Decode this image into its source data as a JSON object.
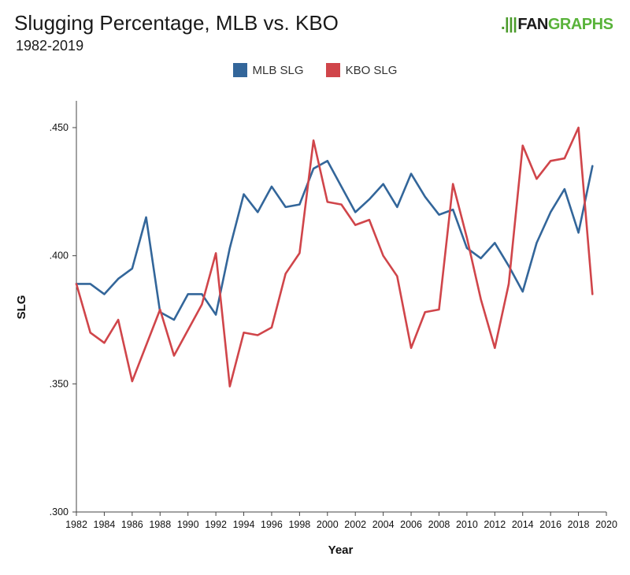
{
  "header": {
    "title": "Slugging Percentage, MLB vs. KBO",
    "subtitle": "1982-2019",
    "logo_mark": ".|||",
    "logo_fan": "FAN",
    "logo_graphs": "GRAPHS"
  },
  "colors": {
    "mlb": "#33669a",
    "kbo": "#d0454a",
    "axis": "#444444"
  },
  "chart_data": {
    "type": "line",
    "title": "Slugging Percentage, MLB vs. KBO",
    "subtitle": "1982-2019",
    "xlabel": "Year",
    "ylabel": "SLG",
    "xlim": [
      1982,
      2020
    ],
    "ylim": [
      0.3,
      0.46
    ],
    "x_ticks": [
      1982,
      1984,
      1986,
      1988,
      1990,
      1992,
      1994,
      1996,
      1998,
      2000,
      2002,
      2004,
      2006,
      2008,
      2010,
      2012,
      2014,
      2016,
      2018,
      2020
    ],
    "x_tick_labels": [
      "1982",
      "1984",
      "1986",
      "1988",
      "1990",
      "1992",
      "1994",
      "1996",
      "1998",
      "2000",
      "2002",
      "2004",
      "2006",
      "2008",
      "2010",
      "2012",
      "2014",
      "2016",
      "2018",
      "2020"
    ],
    "y_ticks": [
      0.3,
      0.35,
      0.4,
      0.45
    ],
    "y_tick_labels": [
      ".300",
      ".350",
      ".400",
      ".450"
    ],
    "grid": false,
    "legend_position": "top-center",
    "x": [
      1982,
      1983,
      1984,
      1985,
      1986,
      1987,
      1988,
      1989,
      1990,
      1991,
      1992,
      1993,
      1994,
      1995,
      1996,
      1997,
      1998,
      1999,
      2000,
      2001,
      2002,
      2003,
      2004,
      2005,
      2006,
      2007,
      2008,
      2009,
      2010,
      2011,
      2012,
      2013,
      2014,
      2015,
      2016,
      2017,
      2018,
      2019
    ],
    "series": [
      {
        "name": "MLB SLG",
        "color": "#33669a",
        "values": [
          0.389,
          0.389,
          0.385,
          0.391,
          0.395,
          0.415,
          0.378,
          0.375,
          0.385,
          0.385,
          0.377,
          0.403,
          0.424,
          0.417,
          0.427,
          0.419,
          0.42,
          0.434,
          0.437,
          0.427,
          0.417,
          0.422,
          0.428,
          0.419,
          0.432,
          0.423,
          0.416,
          0.418,
          0.403,
          0.399,
          0.405,
          0.396,
          0.386,
          0.405,
          0.417,
          0.426,
          0.409,
          0.435
        ]
      },
      {
        "name": "KBO SLG",
        "color": "#d0454a",
        "values": [
          0.389,
          0.37,
          0.366,
          0.375,
          0.351,
          0.365,
          0.379,
          0.361,
          0.371,
          0.381,
          0.401,
          0.349,
          0.37,
          0.369,
          0.372,
          0.393,
          0.401,
          0.445,
          0.421,
          0.42,
          0.412,
          0.414,
          0.4,
          0.392,
          0.364,
          0.378,
          0.379,
          0.428,
          0.407,
          0.383,
          0.364,
          0.389,
          0.443,
          0.43,
          0.437,
          0.438,
          0.45,
          0.385
        ]
      }
    ]
  }
}
